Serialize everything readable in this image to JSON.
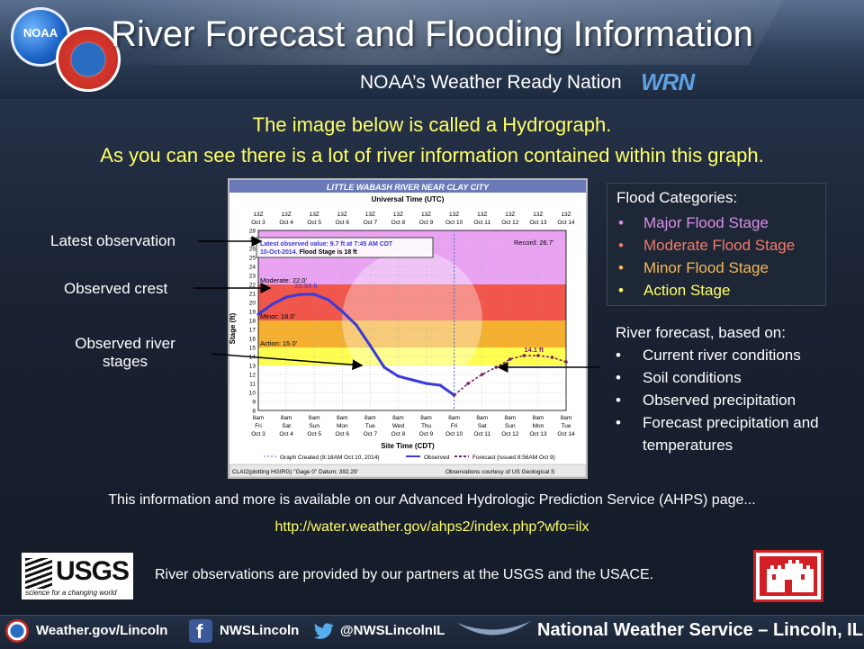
{
  "header": {
    "title": "River Forecast and Flooding Information",
    "subtitle": "NOAA’s Weather Ready Nation",
    "noaa_logo_text": "NOAA",
    "wrn_logo_text": "WRN"
  },
  "intro": {
    "line1": "The image below is called a Hydrograph.",
    "line2": "As you can see there is a lot of river information contained within this graph."
  },
  "callouts": {
    "latest": "Latest observation",
    "crest": "Observed crest",
    "stages_line1": "Observed river",
    "stages_line2": "stages"
  },
  "hydrograph": {
    "title": "LITTLE WABASH RIVER NEAR CLAY CITY",
    "top_axis_title": "Universal Time (UTC)",
    "bottom_axis_title": "Site Time (CDT)",
    "ylabel": "Stage (ft)",
    "utc_ticks": [
      [
        "13Z",
        "Oct 3"
      ],
      [
        "13Z",
        "Oct 4"
      ],
      [
        "13Z",
        "Oct 5"
      ],
      [
        "13Z",
        "Oct 6"
      ],
      [
        "13Z",
        "Oct 7"
      ],
      [
        "13Z",
        "Oct 8"
      ],
      [
        "13Z",
        "Oct 9"
      ],
      [
        "13Z",
        "Oct 10"
      ],
      [
        "13Z",
        "Oct 11"
      ],
      [
        "13Z",
        "Oct 12"
      ],
      [
        "13Z",
        "Oct 13"
      ],
      [
        "13Z",
        "Oct 14"
      ]
    ],
    "local_ticks": [
      [
        "8am",
        "Fri",
        "Oct 3"
      ],
      [
        "8am",
        "Sat",
        "Oct 4"
      ],
      [
        "8am",
        "Sun",
        "Oct 5"
      ],
      [
        "8am",
        "Mon",
        "Oct 6"
      ],
      [
        "8am",
        "Tue",
        "Oct 7"
      ],
      [
        "8am",
        "Wed",
        "Oct 8"
      ],
      [
        "8am",
        "Thu",
        "Oct 9"
      ],
      [
        "8am",
        "Fri",
        "Oct 10"
      ],
      [
        "8am",
        "Sat",
        "Oct 11"
      ],
      [
        "8am",
        "Sun",
        "Oct 12"
      ],
      [
        "8am",
        "Mon",
        "Oct 13"
      ],
      [
        "8am",
        "Tue",
        "Oct 14"
      ]
    ],
    "info_line1": "Latest observed value: 9.7 ft at 7:45 AM CDT",
    "info_line2_date": "10-Oct-2014.",
    "info_line2_flood": " Flood Stage is 18 ft",
    "record_label": "Record: 26.7'",
    "moderate_label": "Moderate: 22.0'",
    "minor_label": "Minor: 18.0'",
    "action_label": "Action: 15.0'",
    "crest_label": "20.93 ft",
    "fcst_crest_label": "14.1 ft",
    "legend_created": "Graph Created (8:18AM Oct 10, 2014)",
    "legend_observed": "Observed",
    "legend_forecast": "Forecast (issued 8:56AM Oct 9)",
    "footer_left": "CLAI2(plotting HGIRG) \"Gage 0\" Datum: 392.29'",
    "footer_right": "Observations courtesy of US Geological S"
  },
  "chart_data": {
    "type": "line",
    "title": "LITTLE WABASH RIVER NEAR CLAY CITY",
    "xlabel": "Site Time (CDT)",
    "ylabel": "Stage (ft)",
    "ylim": [
      8,
      28
    ],
    "xlim_days": [
      "Oct 3",
      "Oct 14"
    ],
    "flood_categories": {
      "record": 26.7,
      "moderate": 22.0,
      "minor": 18.0,
      "action": 15.0
    },
    "series": [
      {
        "name": "Observed",
        "x": [
          "Oct 3",
          "Oct 3.5",
          "Oct 4",
          "Oct 4.5",
          "Oct 5",
          "Oct 5.5",
          "Oct 6",
          "Oct 6.5",
          "Oct 7",
          "Oct 7.5",
          "Oct 8",
          "Oct 8.5",
          "Oct 9",
          "Oct 9.5",
          "Oct 10"
        ],
        "values": [
          18.7,
          19.8,
          20.6,
          20.9,
          20.9,
          20.3,
          19.0,
          17.5,
          15.2,
          12.8,
          11.8,
          11.4,
          11.0,
          10.8,
          9.7
        ]
      },
      {
        "name": "Forecast",
        "x": [
          "Oct 10",
          "Oct 10.5",
          "Oct 11",
          "Oct 11.5",
          "Oct 12",
          "Oct 12.5",
          "Oct 13",
          "Oct 13.5",
          "Oct 14"
        ],
        "values": [
          9.7,
          11.0,
          12.0,
          12.8,
          13.7,
          14.1,
          14.1,
          13.9,
          13.4
        ]
      }
    ]
  },
  "flood_categories_box": {
    "title": "Flood Categories:",
    "items": [
      {
        "label": "Major Flood Stage",
        "color": "#d98ee8"
      },
      {
        "label": "Moderate Flood Stage",
        "color": "#f07b6a"
      },
      {
        "label": "Minor Flood Stage",
        "color": "#f5b85c"
      },
      {
        "label": "Action Stage",
        "color": "#ffff66"
      }
    ]
  },
  "forecast_box": {
    "title": "River forecast, based on:",
    "items": [
      "Current river conditions",
      "Soil conditions",
      "Observed precipitation",
      "Forecast precipitation and temperatures"
    ]
  },
  "bullet": "•",
  "ahps": {
    "text": "This information and more is available on our Advanced Hydrologic Prediction Service (AHPS) page...",
    "link": "http://water.weather.gov/ahps2/index.php?wfo=ilx"
  },
  "partners": {
    "usgs_name": "USGS",
    "usgs_tagline": "science for a changing world",
    "text": "River observations are provided by our partners at the USGS and the USACE."
  },
  "footer": {
    "website": "Weather.gov/Lincoln",
    "facebook": "NWSLincoln",
    "twitter": "@NWSLincolnIL",
    "office": "National Weather Service – Lincoln, IL"
  },
  "colors": {
    "major": "#e9a3f2",
    "moderate": "#f2554a",
    "minor": "#f5b030",
    "action": "#ffff50",
    "observed": "#3a3ad8",
    "forecast": "#7a1a6a",
    "yellow_text": "#ffff66"
  }
}
